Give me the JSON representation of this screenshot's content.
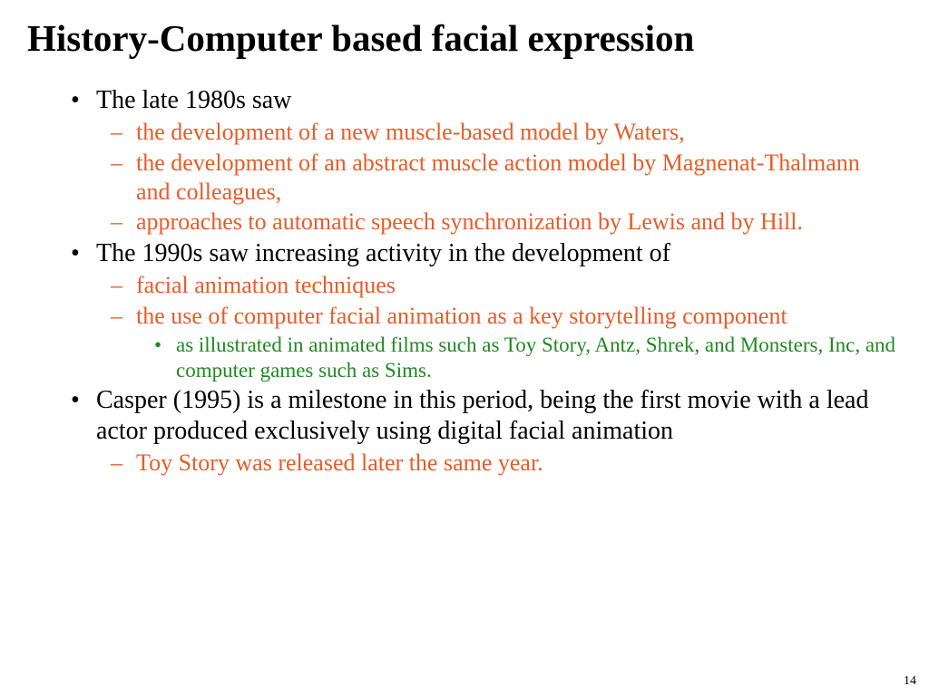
{
  "colors": {
    "title": "#000000",
    "level1_text": "#000000",
    "level2_text": "#e85c28",
    "level3_text": "#1f8a1f",
    "level1_bullet": "#000000",
    "level2_bullet": "#e85c28",
    "level3_bullet": "#1f8a1f",
    "background": "#ffffff",
    "pagenum": "#000000"
  },
  "fontsizes": {
    "title": 41,
    "lvl1": 28,
    "lvl2": 26,
    "lvl3": 23,
    "pagenum": 14
  },
  "title": "History-Computer based facial expression",
  "page_number": "14",
  "bullets": [
    {
      "text": "The late 1980s saw",
      "children": [
        {
          "text": "the development of a new muscle-based model by Waters,"
        },
        {
          "text": "the development of an abstract muscle action model by Magnenat-Thalmann and colleagues,"
        },
        {
          "text": "approaches to automatic speech synchronization by Lewis and by Hill."
        }
      ]
    },
    {
      "text": "The 1990s saw increasing activity in the development of",
      "children": [
        {
          "text": "facial animation techniques"
        },
        {
          "text": "the use of computer facial animation as a key storytelling component",
          "children": [
            {
              "text": "as illustrated in animated films such as Toy Story, Antz, Shrek, and Monsters, Inc, and computer games such as Sims."
            }
          ]
        }
      ]
    },
    {
      "text": "Casper (1995) is a milestone in this period, being the first movie with a lead actor produced exclusively using digital facial animation",
      "children": [
        {
          "text": "Toy Story was released later the same year."
        }
      ]
    }
  ]
}
